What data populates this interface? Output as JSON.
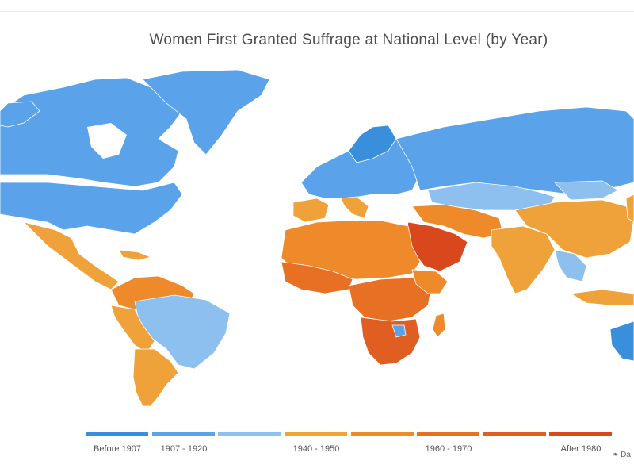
{
  "title": "Women First Granted Suffrage at National Level (by Year)",
  "legend": {
    "colors": [
      "#3a8fdc",
      "#5aa3ea",
      "#8dc0ee",
      "#f0a23a",
      "#ee8a2a",
      "#e87024",
      "#e05e22",
      "#d9481c"
    ],
    "labels": [
      "Before 1907",
      "1907 - 1920",
      "",
      "1940 - 1950",
      "",
      "1960 - 1970",
      "",
      "After 1980"
    ]
  },
  "corner_text": "❧ Da",
  "palette": {
    "ocean": "#ffffff",
    "before_1907": "#3a8fdc",
    "1907_1920": "#5aa3ea",
    "1920_1940": "#8dc0ee",
    "1940_1950": "#f0a23a",
    "1950_1960": "#ee8a2a",
    "1960_1970": "#e87024",
    "1970_1980": "#e05e22",
    "after_1980": "#d9481c"
  }
}
